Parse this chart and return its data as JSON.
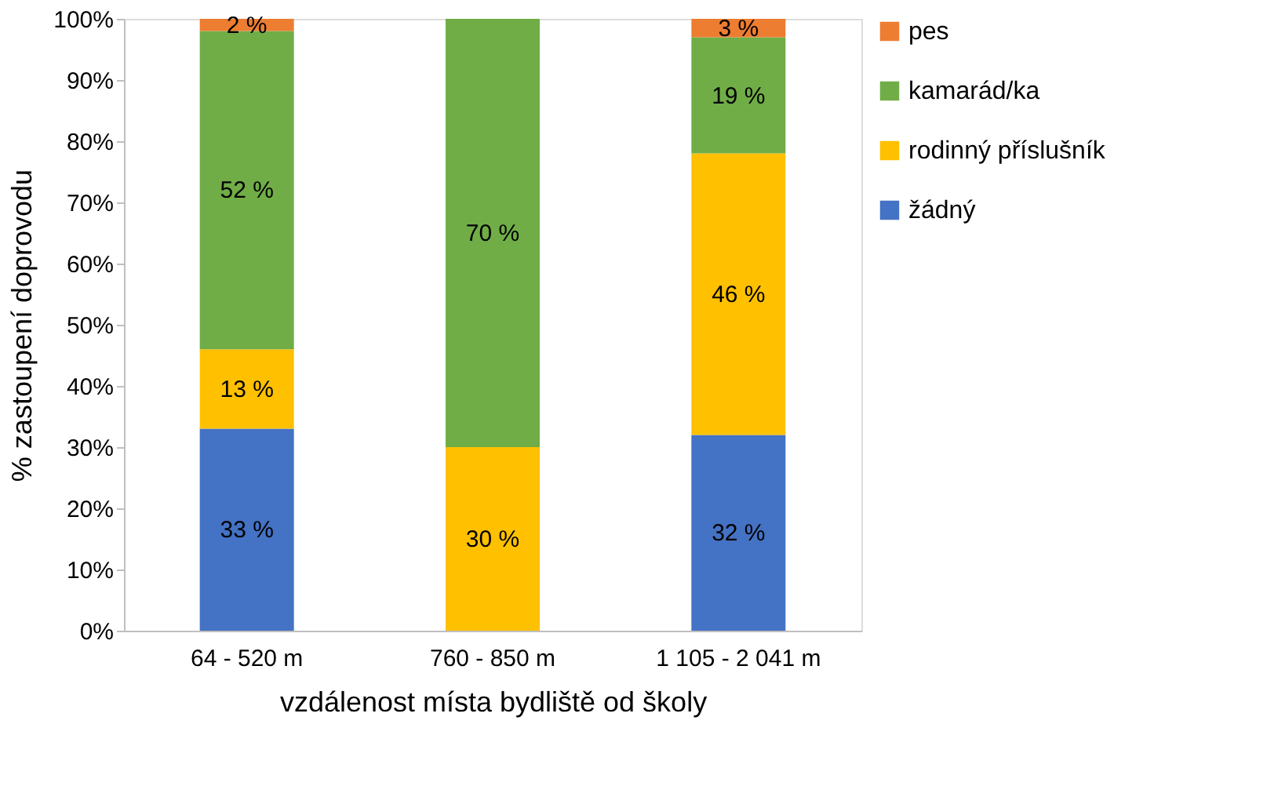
{
  "chart_data": {
    "type": "bar",
    "stacked": true,
    "xlabel": "vzdálenost místa bydliště od školy",
    "ylabel": "% zastoupení doprovodu",
    "categories": [
      "64 - 520 m",
      "760 - 850 m",
      "1 105 - 2 041 m"
    ],
    "series": [
      {
        "name": "žádný",
        "color": "#4472c4",
        "values": [
          33,
          0,
          32
        ],
        "value_labels": [
          "33 %",
          null,
          "32 %"
        ]
      },
      {
        "name": "rodinný příslušník",
        "color": "#ffc000",
        "values": [
          13,
          30,
          46
        ],
        "value_labels": [
          "13 %",
          "30 %",
          "46 %"
        ]
      },
      {
        "name": "kamarád/ka",
        "color": "#70ad47",
        "values": [
          52,
          70,
          19
        ],
        "value_labels": [
          "52 %",
          "70 %",
          "19 %"
        ]
      },
      {
        "name": "pes",
        "color": "#ed7d31",
        "values": [
          2,
          0,
          3
        ],
        "value_labels": [
          "2 %",
          null,
          "3 %"
        ]
      }
    ],
    "ylim": [
      0,
      100
    ],
    "yticks": [
      {
        "value": 0,
        "label": "0%"
      },
      {
        "value": 10,
        "label": "10%"
      },
      {
        "value": 20,
        "label": "20%"
      },
      {
        "value": 30,
        "label": "30%"
      },
      {
        "value": 40,
        "label": "40%"
      },
      {
        "value": 50,
        "label": "50%"
      },
      {
        "value": 60,
        "label": "60%"
      },
      {
        "value": 70,
        "label": "70%"
      },
      {
        "value": 80,
        "label": "80%"
      },
      {
        "value": 90,
        "label": "90%"
      },
      {
        "value": 100,
        "label": "100%"
      }
    ],
    "grid": false,
    "legend": "right"
  }
}
